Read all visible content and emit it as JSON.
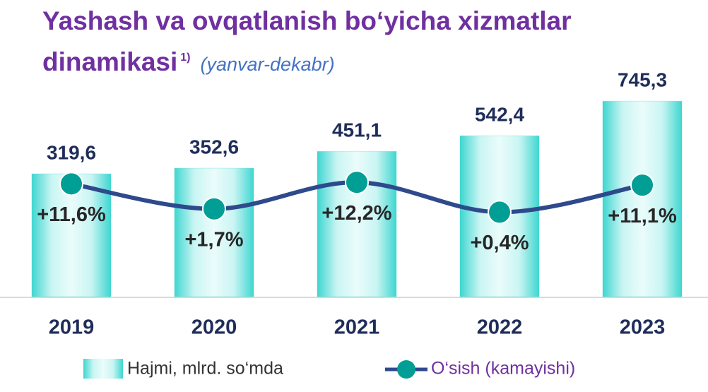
{
  "chart_data": {
    "type": "bar-line",
    "title": "Yashash va ovqatlanish bo‘yicha xizmatlar dinamikasi",
    "title_note": "1)",
    "subtitle": "(yanvar-dekabr)",
    "categories": [
      "2019",
      "2020",
      "2021",
      "2022",
      "2023"
    ],
    "ylim": [
      -400,
      800
    ],
    "y2lim": [
      -33,
      48
    ],
    "series": [
      {
        "name": "Hajmi, mlrd. so‘mda",
        "type": "bar",
        "color": "#40d0d0",
        "values": [
          319.6,
          352.6,
          451.1,
          542.4,
          745.3
        ],
        "value_labels": [
          "319,6",
          "352,6",
          "451,1",
          "542,4",
          "745,3"
        ]
      },
      {
        "name": "O‘sish (kamayishi)",
        "type": "line",
        "axis": "y2",
        "color": "#2e4a8c",
        "marker_color": "#009e94",
        "values": [
          11.6,
          1.7,
          12.2,
          0.4,
          11.1
        ],
        "value_labels": [
          "+11,6%",
          "+1,7%",
          "+12,2%",
          "+0,4%",
          "+11,1%"
        ]
      }
    ]
  }
}
